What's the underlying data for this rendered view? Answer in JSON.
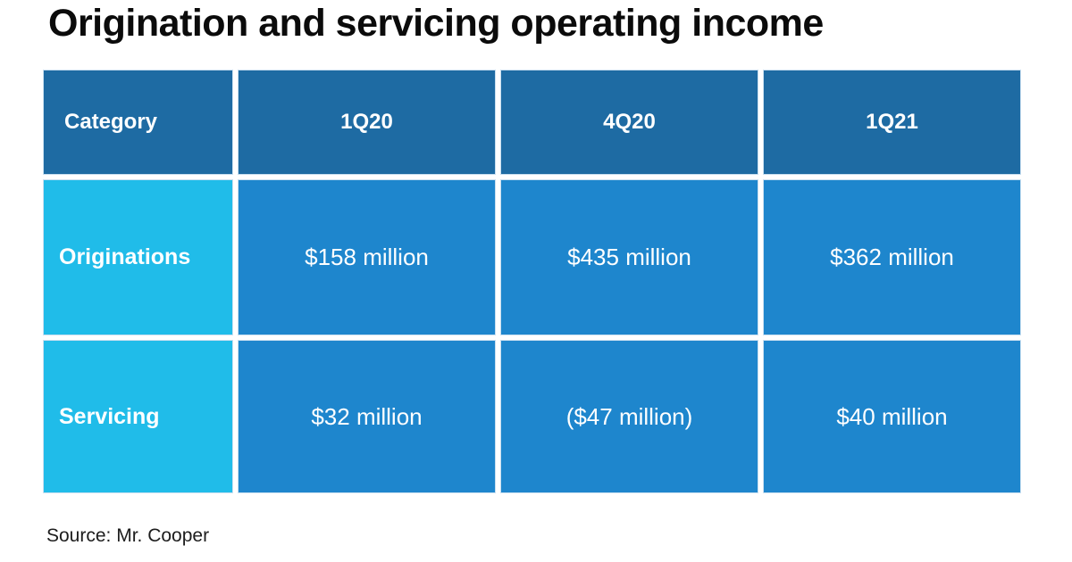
{
  "title": "Origination and servicing operating income",
  "source": "Source: Mr. Cooper",
  "colors": {
    "header_bg": "#1e6ba3",
    "row_label_bg": "#20bce9",
    "value_cell_bg": "#1e86cd",
    "cell_border": "#c9dff0",
    "table_text": "#ffffff",
    "title_text": "#0b0b0b",
    "background": "#ffffff"
  },
  "table": {
    "headers": [
      "Category",
      "1Q20",
      "4Q20",
      "1Q21"
    ],
    "rows": [
      {
        "label": "Originations",
        "values": [
          "$158 million",
          "$435 million",
          "$362 million"
        ]
      },
      {
        "label": "Servicing",
        "values": [
          "$32 million",
          "($47 million)",
          "$40 million"
        ]
      }
    ]
  },
  "chart_data": {
    "type": "table",
    "title": "Origination and servicing operating income",
    "columns": [
      "Category",
      "1Q20",
      "4Q20",
      "1Q21"
    ],
    "rows": [
      {
        "label": "Originations",
        "values": [
          "$158 million",
          "$435 million",
          "$362 million"
        ]
      },
      {
        "label": "Servicing",
        "values": [
          "$32 million",
          "($47 million)",
          "$40 million"
        ]
      }
    ],
    "values_numeric_millions": {
      "Originations": [
        158,
        435,
        362
      ],
      "Servicing": [
        32,
        -47,
        40
      ]
    },
    "source": "Source: Mr. Cooper"
  }
}
